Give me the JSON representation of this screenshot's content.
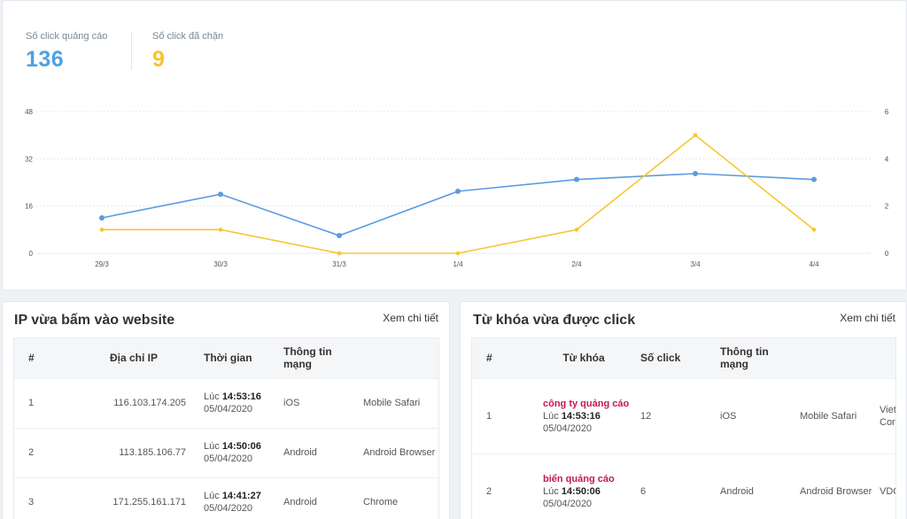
{
  "stats": {
    "clicks_label": "Số click quảng cáo",
    "clicks_value": "136",
    "blocked_label": "Số click đã chặn",
    "blocked_value": "9"
  },
  "colors": {
    "clicks": "#5b9be0",
    "blocked": "#f7c633",
    "keyword": "#c2185b"
  },
  "chart_data": {
    "type": "line",
    "categories": [
      "29/3",
      "30/3",
      "31/3",
      "1/4",
      "2/4",
      "3/4",
      "4/4"
    ],
    "series": [
      {
        "axis": "left",
        "color": "#5b9be0",
        "values": [
          12,
          20,
          6,
          21,
          25,
          27,
          25
        ]
      },
      {
        "axis": "right",
        "color": "#f7c633",
        "values": [
          1,
          1,
          0,
          0,
          1,
          5,
          1
        ]
      }
    ],
    "y_left": {
      "ticks": [
        "0",
        "16",
        "32",
        "48"
      ],
      "ylim": [
        0,
        48
      ]
    },
    "y_right": {
      "ticks": [
        "0",
        "2",
        "4",
        "6"
      ],
      "ylim": [
        0,
        6
      ]
    },
    "grid": true
  },
  "ip_panel": {
    "title": "IP vừa bấm vào website",
    "link": "Xem chi tiết",
    "headers": [
      "#",
      "Địa chỉ IP",
      "Thời gian",
      "Thông tin mạng",
      ""
    ],
    "rows": [
      {
        "num": "1",
        "ip": "116.103.174.205",
        "at": "Lúc",
        "time": "14:53:16",
        "date": "05/04/2020",
        "os": "iOS",
        "browser": "Mobile Safari"
      },
      {
        "num": "2",
        "ip": "113.185.106.77",
        "at": "Lúc",
        "time": "14:50:06",
        "date": "05/04/2020",
        "os": "Android",
        "browser": "Android Browser"
      },
      {
        "num": "3",
        "ip": "171.255.161.171",
        "at": "Lúc",
        "time": "14:41:27",
        "date": "05/04/2020",
        "os": "Android",
        "browser": "Chrome"
      }
    ]
  },
  "kw_panel": {
    "title": "Từ khóa vừa được click",
    "link": "Xem chi tiết",
    "headers": [
      "#",
      "Từ khóa",
      "Số click",
      "Thông tin mạng",
      "",
      ""
    ],
    "rows": [
      {
        "num": "1",
        "keyword": "công ty quảng cáo",
        "at": "Lúc",
        "time": "14:53:16",
        "date": "05/04/2020",
        "clicks": "12",
        "os": "iOS",
        "browser": "Mobile Safari",
        "isp": "Viettel Corporation"
      },
      {
        "num": "2",
        "keyword": "biển quảng cáo",
        "at": "Lúc",
        "time": "14:50:06",
        "date": "05/04/2020",
        "clicks": "6",
        "os": "Android",
        "browser": "Android Browser",
        "isp": "VDC"
      }
    ]
  }
}
